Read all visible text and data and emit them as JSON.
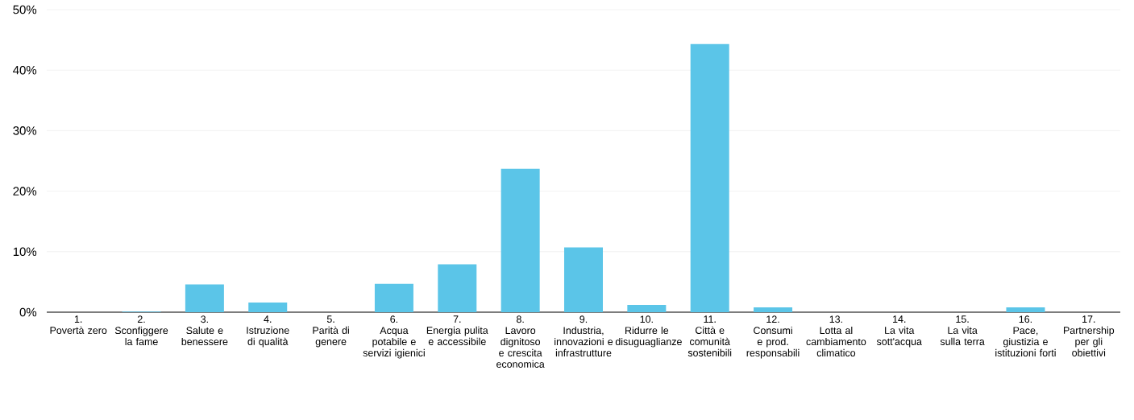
{
  "chart_data": {
    "type": "bar",
    "categories": [
      "1.\nPovertà zero",
      "2.\nSconfiggere la fame",
      "3.\nSalute e benessere",
      "4.\nIstruzione di qualità",
      "5.\nParità di genere",
      "6.\nAcqua potabile e servizi igienici",
      "7.\nEnergia pulita e accessibile",
      "8.\nLavoro dignitoso e crescita economica",
      "9.\nIndustria, innovazioni e infrastrutture",
      "10.\nRidurre le disuguaglianze",
      "11.\nCittà e comunità sostenibili",
      "12.\nConsumi e prod. responsabili",
      "13.\nLotta al cambiamento climatico",
      "14.\nLa vita sott'acqua",
      "15.\nLa vita sulla terra",
      "16.\nPace, giustizia e istituzioni forti",
      "17.\nPartnership per gli obiettivi"
    ],
    "values": [
      0,
      0.1,
      4.6,
      1.6,
      0,
      4.7,
      7.9,
      23.7,
      10.7,
      1.2,
      44.3,
      0.8,
      0,
      0,
      0,
      0.8,
      0
    ],
    "color": "#5bc5e8",
    "ylim": [
      0,
      50
    ],
    "yticks": [
      {
        "value": 0,
        "label": "0%"
      },
      {
        "value": 10,
        "label": "10%"
      },
      {
        "value": 20,
        "label": "20%"
      },
      {
        "value": 30,
        "label": "30%"
      },
      {
        "value": 40,
        "label": "40%"
      },
      {
        "value": 50,
        "label": "50%"
      }
    ],
    "grid": "y"
  }
}
